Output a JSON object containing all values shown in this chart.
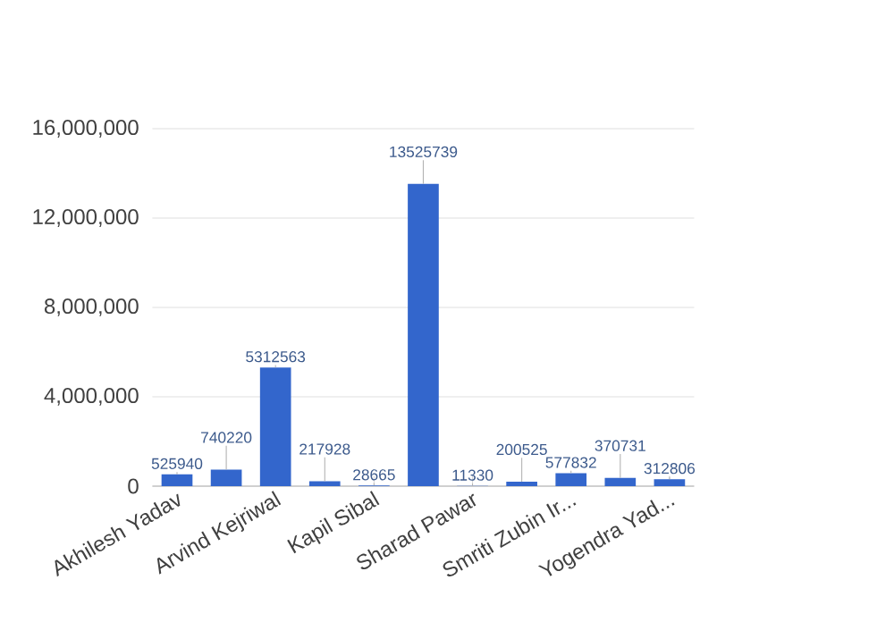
{
  "chart_data": {
    "type": "bar",
    "categories": [
      "Akhilesh Yadav",
      null,
      "Arvind Kejriwal",
      null,
      "Kapil Sibal",
      null,
      "Sharad Pawar",
      null,
      "Smriti Zubin Ir...",
      null,
      "Yogendra Yad..."
    ],
    "values": [
      525940,
      740220,
      5312563,
      217928,
      28665,
      13525739,
      11330,
      200525,
      577832,
      370731,
      312806
    ],
    "color": "#3366cc",
    "data_labels": true,
    "ylim": [
      0,
      16000000
    ],
    "yticks": [
      {
        "value": 0,
        "label": "0"
      },
      {
        "value": 4000000,
        "label": "4,000,000"
      },
      {
        "value": 8000000,
        "label": "8,000,000"
      },
      {
        "value": 12000000,
        "label": "12,000,000"
      },
      {
        "value": 16000000,
        "label": "16,000,000"
      }
    ],
    "grid": "y"
  }
}
